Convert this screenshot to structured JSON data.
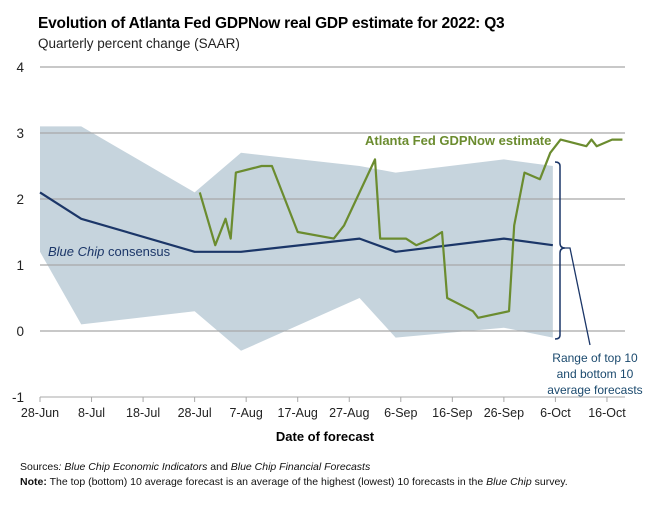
{
  "chart_data": {
    "type": "line",
    "title": "Evolution of Atlanta Fed GDPNow real GDP estimate for 2022: Q3",
    "subtitle": "Quarterly percent change (SAAR)",
    "xlabel": "Date of forecast",
    "ylabel": "",
    "x_unit": "days since 28-Jun",
    "xlim": [
      0,
      113.5
    ],
    "ylim": [
      -1,
      4
    ],
    "yticks": [
      "-1",
      "0",
      "1",
      "2",
      "3",
      "4"
    ],
    "xticks": [
      {
        "day": 0,
        "label": "28-Jun"
      },
      {
        "day": 10,
        "label": "8-Jul"
      },
      {
        "day": 20,
        "label": "18-Jul"
      },
      {
        "day": 30,
        "label": "28-Jul"
      },
      {
        "day": 40,
        "label": "7-Aug"
      },
      {
        "day": 50,
        "label": "17-Aug"
      },
      {
        "day": 60,
        "label": "27-Aug"
      },
      {
        "day": 70,
        "label": "6-Sep"
      },
      {
        "day": 80,
        "label": "16-Sep"
      },
      {
        "day": 90,
        "label": "26-Sep"
      },
      {
        "day": 100,
        "label": "6-Oct"
      },
      {
        "day": 110,
        "label": "16-Oct"
      }
    ],
    "grid": true,
    "series": [
      {
        "name": "Range of top 10 and bottom 10 average forecasts",
        "kind": "band",
        "color": "#c6d4dd",
        "x": [
          0,
          8,
          30,
          39,
          62,
          69,
          90,
          99.5
        ],
        "upper": [
          3.1,
          3.1,
          2.1,
          2.7,
          2.5,
          2.4,
          2.6,
          2.5
        ],
        "lower": [
          1.2,
          0.1,
          0.3,
          -0.3,
          0.5,
          -0.1,
          0.05,
          -0.1
        ]
      },
      {
        "name": "Blue Chip consensus",
        "kind": "line",
        "color": "#1b3668",
        "x": [
          0,
          8,
          30,
          39,
          62,
          69,
          90,
          99.5
        ],
        "values": [
          2.1,
          1.7,
          1.2,
          1.2,
          1.4,
          1.2,
          1.4,
          1.3
        ]
      },
      {
        "name": "Atlanta Fed GDPNow estimate",
        "kind": "line",
        "color": "#6b8c2f",
        "x": [
          31,
          34,
          36,
          37,
          38,
          43,
          45,
          50,
          57,
          59,
          65,
          66,
          71,
          73,
          76,
          78,
          79,
          84,
          85,
          91,
          92,
          94,
          97,
          99,
          101,
          106,
          107,
          108,
          111,
          113
        ],
        "values": [
          2.1,
          1.3,
          1.7,
          1.4,
          2.4,
          2.5,
          2.5,
          1.5,
          1.4,
          1.6,
          2.6,
          1.4,
          1.4,
          1.3,
          1.4,
          1.5,
          0.5,
          0.3,
          0.2,
          0.3,
          1.6,
          2.4,
          2.3,
          2.7,
          2.9,
          2.8,
          2.9,
          2.8,
          2.9,
          2.9
        ]
      }
    ],
    "annotations": {
      "gdpnow": "Atlanta Fed GDPNow estimate",
      "bluechip_italic": "Blue Chip",
      "bluechip_rest": " consensus",
      "range": [
        "Range of top 10",
        "and bottom 10",
        "average forecasts"
      ]
    }
  },
  "footer": {
    "sources_label": "Sources",
    "sources_text": ": ",
    "sources_pub1": "Blue Chip Economic Indicators",
    "sources_and": " and ",
    "sources_pub2": "Blue Chip Financial Forecasts",
    "note_label": "Note:",
    "note_text": " The top (bottom) 10 average forecast is an average of the highest (lowest) 10 forecasts in the ",
    "note_italic": "Blue Chip",
    "note_end": " survey."
  }
}
